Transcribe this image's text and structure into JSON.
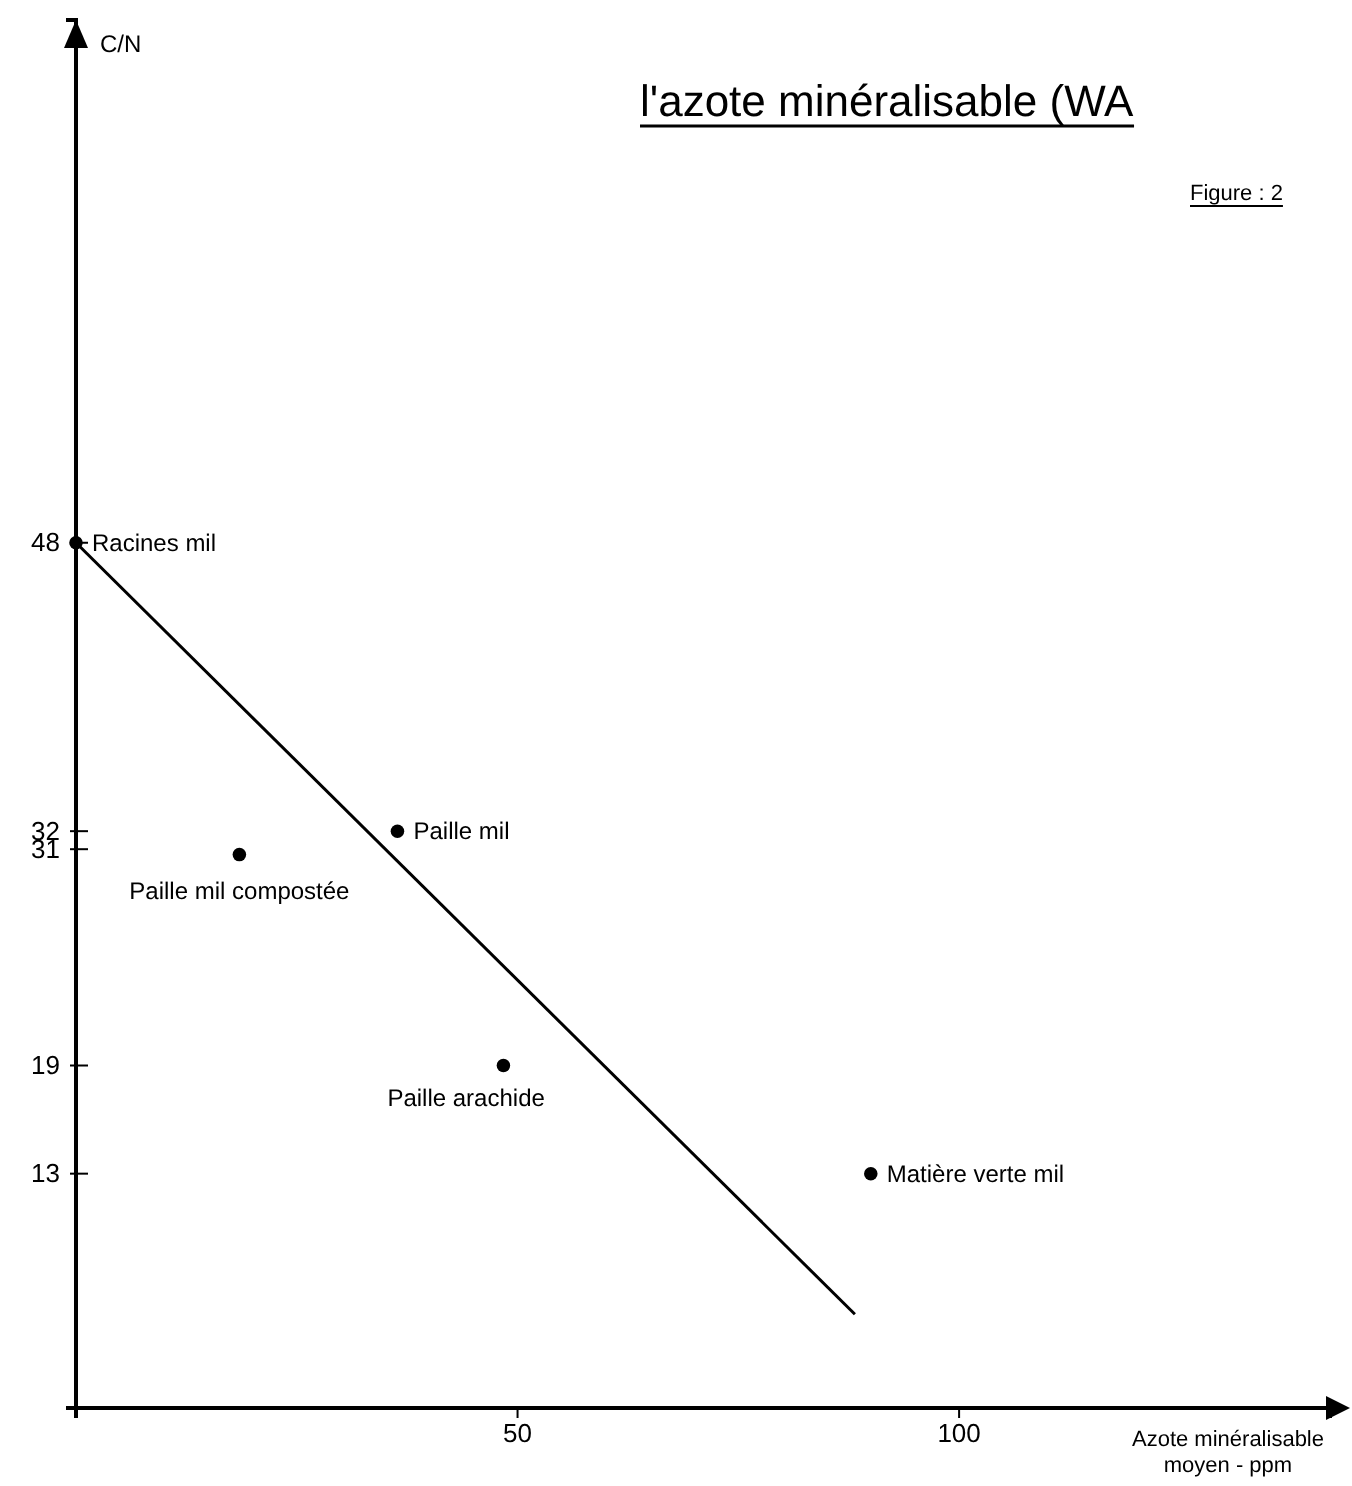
{
  "chart_data": {
    "type": "scatter",
    "title": "l'azote minéralisable (WA",
    "ylabel": "C/N",
    "xlabel": "Azote minéralisable moyen - ppm",
    "xlim": [
      0,
      142
    ],
    "ylim": [
      0,
      77
    ],
    "xticks": [
      50,
      100
    ],
    "yticks": [
      13,
      19,
      31,
      32,
      48
    ],
    "grid": false,
    "series": [
      {
        "color": "#000000",
        "marker": "circle",
        "x": [
          0,
          36.4,
          18.5,
          48.4,
          90
        ],
        "values": [
          48,
          32,
          30.7,
          19,
          13
        ]
      },
      {
        "type": "line",
        "color": "#000000",
        "x": [
          0,
          88.2
        ],
        "values": [
          48,
          5.2
        ]
      }
    ],
    "annotations": [
      {
        "text": "Racines  mil",
        "x": 0,
        "y": 48
      },
      {
        "text": "Paille  mil",
        "x": 36.4,
        "y": 32
      },
      {
        "text": "Paille  mil compostée",
        "x": 18.5,
        "y": 30.7
      },
      {
        "text": "Paille  arachide",
        "x": 48.4,
        "y": 19
      },
      {
        "text": "Matière  verte mil",
        "x": 90,
        "y": 13
      },
      "Figure : 2"
    ]
  }
}
